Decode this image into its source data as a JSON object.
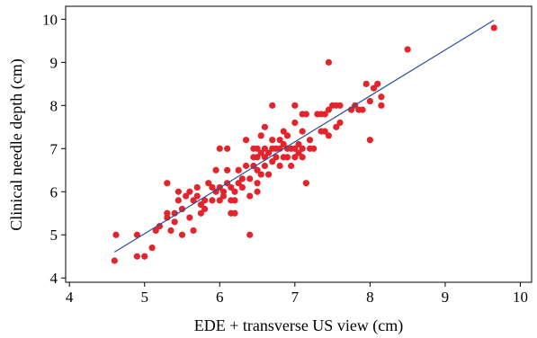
{
  "chart_data": {
    "type": "scatter",
    "xlabel": "EDE + transverse US view (cm)",
    "ylabel": "Clinical needle depth (cm)",
    "xlim": [
      3.95,
      10.15
    ],
    "ylim": [
      3.9,
      10.3
    ],
    "xticks": [
      4,
      5,
      6,
      7,
      8,
      9,
      10
    ],
    "yticks": [
      4,
      5,
      6,
      7,
      8,
      9,
      10
    ],
    "grid": false,
    "marker_color": "#e3242b",
    "line_color": "#2b4e9c",
    "fit_line": {
      "x": [
        4.6,
        9.65
      ],
      "y": [
        4.6,
        9.98
      ]
    },
    "points": [
      [
        4.6,
        4.4
      ],
      [
        4.62,
        5.0
      ],
      [
        4.9,
        4.5
      ],
      [
        4.9,
        5.0
      ],
      [
        5.0,
        4.5
      ],
      [
        5.1,
        4.7
      ],
      [
        5.15,
        5.1
      ],
      [
        5.2,
        5.2
      ],
      [
        5.3,
        5.4
      ],
      [
        5.3,
        5.5
      ],
      [
        5.3,
        6.2
      ],
      [
        5.35,
        5.1
      ],
      [
        5.4,
        5.3
      ],
      [
        5.4,
        5.5
      ],
      [
        5.45,
        5.8
      ],
      [
        5.45,
        6.0
      ],
      [
        5.5,
        5.0
      ],
      [
        5.5,
        5.6
      ],
      [
        5.55,
        5.9
      ],
      [
        5.6,
        5.4
      ],
      [
        5.6,
        6.0
      ],
      [
        5.65,
        5.1
      ],
      [
        5.65,
        5.8
      ],
      [
        5.7,
        5.9
      ],
      [
        5.7,
        6.1
      ],
      [
        5.75,
        5.5
      ],
      [
        5.75,
        5.7
      ],
      [
        5.8,
        5.6
      ],
      [
        5.8,
        5.8
      ],
      [
        5.85,
        6.2
      ],
      [
        5.9,
        5.8
      ],
      [
        5.9,
        6.1
      ],
      [
        5.95,
        6.0
      ],
      [
        5.95,
        6.5
      ],
      [
        6.0,
        5.8
      ],
      [
        6.0,
        6.1
      ],
      [
        6.0,
        7.0
      ],
      [
        6.05,
        5.9
      ],
      [
        6.05,
        6.0
      ],
      [
        6.1,
        6.2
      ],
      [
        6.1,
        6.5
      ],
      [
        6.1,
        7.0
      ],
      [
        6.15,
        5.5
      ],
      [
        6.15,
        5.8
      ],
      [
        6.15,
        6.1
      ],
      [
        6.2,
        5.5
      ],
      [
        6.2,
        5.8
      ],
      [
        6.2,
        6.0
      ],
      [
        6.25,
        6.2
      ],
      [
        6.25,
        6.5
      ],
      [
        6.3,
        6.1
      ],
      [
        6.3,
        6.3
      ],
      [
        6.35,
        6.6
      ],
      [
        6.35,
        7.2
      ],
      [
        6.4,
        5.0
      ],
      [
        6.4,
        5.9
      ],
      [
        6.4,
        6.3
      ],
      [
        6.45,
        6.6
      ],
      [
        6.45,
        6.8
      ],
      [
        6.45,
        7.0
      ],
      [
        6.5,
        6.0
      ],
      [
        6.5,
        6.2
      ],
      [
        6.5,
        6.5
      ],
      [
        6.5,
        6.8
      ],
      [
        6.5,
        7.0
      ],
      [
        6.55,
        6.4
      ],
      [
        6.55,
        6.9
      ],
      [
        6.55,
        7.3
      ],
      [
        6.6,
        6.6
      ],
      [
        6.6,
        6.8
      ],
      [
        6.6,
        7.0
      ],
      [
        6.6,
        7.5
      ],
      [
        6.65,
        6.4
      ],
      [
        6.65,
        6.9
      ],
      [
        6.7,
        6.7
      ],
      [
        6.7,
        7.0
      ],
      [
        6.7,
        7.2
      ],
      [
        6.7,
        8.0
      ],
      [
        6.75,
        6.8
      ],
      [
        6.75,
        7.0
      ],
      [
        6.8,
        6.6
      ],
      [
        6.8,
        7.0
      ],
      [
        6.8,
        7.2
      ],
      [
        6.85,
        6.8
      ],
      [
        6.85,
        7.1
      ],
      [
        6.85,
        7.4
      ],
      [
        6.9,
        6.8
      ],
      [
        6.9,
        7.0
      ],
      [
        6.9,
        7.3
      ],
      [
        6.95,
        6.6
      ],
      [
        6.95,
        7.0
      ],
      [
        7.0,
        6.8
      ],
      [
        7.0,
        7.0
      ],
      [
        7.0,
        7.6
      ],
      [
        7.0,
        8.0
      ],
      [
        7.05,
        6.9
      ],
      [
        7.05,
        7.1
      ],
      [
        7.1,
        6.8
      ],
      [
        7.1,
        7.0
      ],
      [
        7.1,
        7.4
      ],
      [
        7.1,
        7.8
      ],
      [
        7.15,
        6.2
      ],
      [
        7.15,
        7.8
      ],
      [
        7.2,
        7.0
      ],
      [
        7.2,
        7.2
      ],
      [
        7.25,
        7.0
      ],
      [
        7.3,
        7.8
      ],
      [
        7.35,
        7.4
      ],
      [
        7.35,
        7.8
      ],
      [
        7.4,
        7.4
      ],
      [
        7.4,
        7.8
      ],
      [
        7.45,
        7.3
      ],
      [
        7.45,
        7.9
      ],
      [
        7.45,
        9.0
      ],
      [
        7.5,
        8.0
      ],
      [
        7.55,
        7.5
      ],
      [
        7.55,
        8.0
      ],
      [
        7.6,
        7.6
      ],
      [
        7.6,
        8.0
      ],
      [
        7.75,
        7.9
      ],
      [
        7.8,
        8.0
      ],
      [
        7.85,
        7.9
      ],
      [
        7.9,
        7.9
      ],
      [
        7.95,
        8.5
      ],
      [
        8.0,
        7.2
      ],
      [
        8.0,
        8.1
      ],
      [
        8.05,
        8.4
      ],
      [
        8.1,
        8.5
      ],
      [
        8.15,
        8.0
      ],
      [
        8.15,
        8.2
      ],
      [
        8.5,
        9.3
      ],
      [
        9.65,
        9.8
      ]
    ]
  }
}
